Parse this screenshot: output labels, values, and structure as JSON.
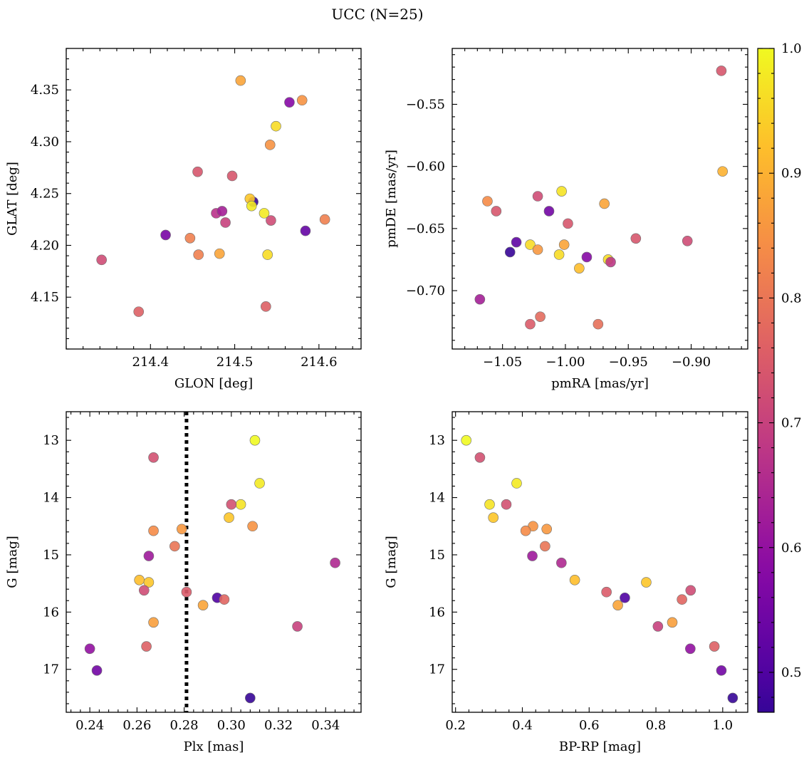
{
  "figure": {
    "title": "UCC (N=25)"
  },
  "colors": {
    "colormap": "plasma",
    "point_edge": "#6e6e6e",
    "vline": "#000000"
  },
  "chart_data": [
    {
      "type": "scatter",
      "panel": "top-left",
      "xlabel": "GLON [deg]",
      "ylabel": "GLAT [deg]",
      "xlim": [
        214.3,
        214.65
      ],
      "ylim": [
        4.1,
        4.39
      ],
      "xticks": [
        214.4,
        214.5,
        214.6
      ],
      "xtick_labels": [
        "214.4",
        "214.5",
        "214.6"
      ],
      "yticks": [
        4.15,
        4.2,
        4.25,
        4.3,
        4.35
      ],
      "ytick_labels": [
        "4.15",
        "4.20",
        "4.25",
        "4.30",
        "4.35"
      ],
      "points": [
        {
          "x": 214.507,
          "y": 4.359,
          "c": 0.88
        },
        {
          "x": 214.565,
          "y": 4.338,
          "c": 0.58
        },
        {
          "x": 214.58,
          "y": 4.34,
          "c": 0.85
        },
        {
          "x": 214.549,
          "y": 4.315,
          "c": 0.96
        },
        {
          "x": 214.542,
          "y": 4.297,
          "c": 0.85
        },
        {
          "x": 214.456,
          "y": 4.271,
          "c": 0.74
        },
        {
          "x": 214.497,
          "y": 4.267,
          "c": 0.74
        },
        {
          "x": 214.522,
          "y": 4.242,
          "c": 0.47
        },
        {
          "x": 214.518,
          "y": 4.245,
          "c": 0.93
        },
        {
          "x": 214.52,
          "y": 4.238,
          "c": 0.98
        },
        {
          "x": 214.535,
          "y": 4.231,
          "c": 0.98
        },
        {
          "x": 214.478,
          "y": 4.231,
          "c": 0.67
        },
        {
          "x": 214.485,
          "y": 4.233,
          "c": 0.63
        },
        {
          "x": 214.489,
          "y": 4.222,
          "c": 0.7
        },
        {
          "x": 214.543,
          "y": 4.224,
          "c": 0.72
        },
        {
          "x": 214.607,
          "y": 4.225,
          "c": 0.82
        },
        {
          "x": 214.584,
          "y": 4.214,
          "c": 0.53
        },
        {
          "x": 214.418,
          "y": 4.21,
          "c": 0.56
        },
        {
          "x": 214.447,
          "y": 4.207,
          "c": 0.82
        },
        {
          "x": 214.457,
          "y": 4.191,
          "c": 0.82
        },
        {
          "x": 214.482,
          "y": 4.192,
          "c": 0.88
        },
        {
          "x": 214.539,
          "y": 4.191,
          "c": 0.96
        },
        {
          "x": 214.342,
          "y": 4.186,
          "c": 0.72
        },
        {
          "x": 214.386,
          "y": 4.136,
          "c": 0.76
        },
        {
          "x": 214.537,
          "y": 4.141,
          "c": 0.76
        }
      ]
    },
    {
      "type": "scatter",
      "panel": "top-right",
      "xlabel": "pmRA [mas/yr]",
      "ylabel": "pmDE [mas/yr]",
      "xlim": [
        -1.09,
        -0.855
      ],
      "ylim": [
        -0.747,
        -0.505
      ],
      "xticks": [
        -1.05,
        -1.0,
        -0.95,
        -0.9
      ],
      "xtick_labels": [
        "−1.05",
        "−1.00",
        "−0.95",
        "−0.90"
      ],
      "yticks": [
        -0.7,
        -0.65,
        -0.6,
        -0.55
      ],
      "ytick_labels": [
        "−0.70",
        "−0.65",
        "−0.60",
        "−0.55"
      ],
      "points": [
        {
          "x": -0.876,
          "y": -0.523,
          "c": 0.74
        },
        {
          "x": -0.875,
          "y": -0.604,
          "c": 0.9
        },
        {
          "x": -1.062,
          "y": -0.628,
          "c": 0.84
        },
        {
          "x": -1.055,
          "y": -0.636,
          "c": 0.74
        },
        {
          "x": -1.022,
          "y": -0.624,
          "c": 0.72
        },
        {
          "x": -1.013,
          "y": -0.636,
          "c": 0.55
        },
        {
          "x": -1.003,
          "y": -0.62,
          "c": 0.97
        },
        {
          "x": -0.969,
          "y": -0.63,
          "c": 0.88
        },
        {
          "x": -0.998,
          "y": -0.646,
          "c": 0.74
        },
        {
          "x": -0.944,
          "y": -0.658,
          "c": 0.74
        },
        {
          "x": -0.903,
          "y": -0.66,
          "c": 0.72
        },
        {
          "x": -1.039,
          "y": -0.661,
          "c": 0.52
        },
        {
          "x": -1.044,
          "y": -0.669,
          "c": 0.47
        },
        {
          "x": -1.028,
          "y": -0.663,
          "c": 0.96
        },
        {
          "x": -1.022,
          "y": -0.667,
          "c": 0.86
        },
        {
          "x": -1.001,
          "y": -0.663,
          "c": 0.88
        },
        {
          "x": -1.005,
          "y": -0.671,
          "c": 0.96
        },
        {
          "x": -0.983,
          "y": -0.673,
          "c": 0.58
        },
        {
          "x": -0.966,
          "y": -0.675,
          "c": 0.96
        },
        {
          "x": -0.964,
          "y": -0.677,
          "c": 0.68
        },
        {
          "x": -0.989,
          "y": -0.682,
          "c": 0.92
        },
        {
          "x": -1.068,
          "y": -0.707,
          "c": 0.63
        },
        {
          "x": -1.02,
          "y": -0.721,
          "c": 0.78
        },
        {
          "x": -1.028,
          "y": -0.727,
          "c": 0.75
        },
        {
          "x": -0.974,
          "y": -0.727,
          "c": 0.79
        }
      ]
    },
    {
      "type": "scatter",
      "panel": "bottom-left",
      "xlabel": "Plx [mas]",
      "ylabel": "G [mag]",
      "xlim": [
        0.23,
        0.355
      ],
      "ylim": [
        17.75,
        12.5
      ],
      "y_inverted": true,
      "xticks": [
        0.24,
        0.26,
        0.28,
        0.3,
        0.32,
        0.34
      ],
      "xtick_labels": [
        "0.24",
        "0.26",
        "0.28",
        "0.30",
        "0.32",
        "0.34"
      ],
      "yticks": [
        13,
        14,
        15,
        16,
        17
      ],
      "ytick_labels": [
        "13",
        "14",
        "15",
        "16",
        "17"
      ],
      "vline": {
        "x": 0.281,
        "style": "dotted"
      },
      "points": [
        {
          "x": 0.31,
          "y": 13.0,
          "c": 1.0
        },
        {
          "x": 0.267,
          "y": 13.3,
          "c": 0.73
        },
        {
          "x": 0.312,
          "y": 13.75,
          "c": 0.98
        },
        {
          "x": 0.304,
          "y": 14.12,
          "c": 0.97
        },
        {
          "x": 0.3,
          "y": 14.12,
          "c": 0.73
        },
        {
          "x": 0.299,
          "y": 14.35,
          "c": 0.93
        },
        {
          "x": 0.309,
          "y": 14.5,
          "c": 0.85
        },
        {
          "x": 0.267,
          "y": 14.58,
          "c": 0.84
        },
        {
          "x": 0.279,
          "y": 14.55,
          "c": 0.86
        },
        {
          "x": 0.276,
          "y": 14.85,
          "c": 0.8
        },
        {
          "x": 0.265,
          "y": 15.02,
          "c": 0.62
        },
        {
          "x": 0.344,
          "y": 15.14,
          "c": 0.65
        },
        {
          "x": 0.261,
          "y": 15.44,
          "c": 0.92
        },
        {
          "x": 0.265,
          "y": 15.48,
          "c": 0.93
        },
        {
          "x": 0.263,
          "y": 15.62,
          "c": 0.72
        },
        {
          "x": 0.281,
          "y": 15.65,
          "c": 0.75
        },
        {
          "x": 0.294,
          "y": 15.75,
          "c": 0.5
        },
        {
          "x": 0.297,
          "y": 15.78,
          "c": 0.77
        },
        {
          "x": 0.288,
          "y": 15.88,
          "c": 0.88
        },
        {
          "x": 0.267,
          "y": 16.18,
          "c": 0.87
        },
        {
          "x": 0.328,
          "y": 16.25,
          "c": 0.7
        },
        {
          "x": 0.264,
          "y": 16.6,
          "c": 0.76
        },
        {
          "x": 0.24,
          "y": 16.64,
          "c": 0.6
        },
        {
          "x": 0.243,
          "y": 17.02,
          "c": 0.55
        },
        {
          "x": 0.308,
          "y": 17.5,
          "c": 0.47
        }
      ]
    },
    {
      "type": "scatter",
      "panel": "bottom-right",
      "xlabel": "BP-RP [mag]",
      "ylabel": "G [mag]",
      "xlim": [
        0.19,
        1.075
      ],
      "ylim": [
        17.75,
        12.5
      ],
      "y_inverted": true,
      "xticks": [
        0.2,
        0.4,
        0.6,
        0.8,
        1.0
      ],
      "xtick_labels": [
        "0.2",
        "0.4",
        "0.6",
        "0.8",
        "1.0"
      ],
      "yticks": [
        13,
        14,
        15,
        16,
        17
      ],
      "ytick_labels": [
        "13",
        "14",
        "15",
        "16",
        "17"
      ],
      "points": [
        {
          "x": 0.232,
          "y": 13.0,
          "c": 1.0
        },
        {
          "x": 0.273,
          "y": 13.3,
          "c": 0.73
        },
        {
          "x": 0.383,
          "y": 13.75,
          "c": 0.98
        },
        {
          "x": 0.302,
          "y": 14.12,
          "c": 0.97
        },
        {
          "x": 0.352,
          "y": 14.12,
          "c": 0.73
        },
        {
          "x": 0.313,
          "y": 14.35,
          "c": 0.93
        },
        {
          "x": 0.432,
          "y": 14.5,
          "c": 0.85
        },
        {
          "x": 0.41,
          "y": 14.58,
          "c": 0.84
        },
        {
          "x": 0.473,
          "y": 14.55,
          "c": 0.86
        },
        {
          "x": 0.468,
          "y": 14.85,
          "c": 0.8
        },
        {
          "x": 0.43,
          "y": 15.02,
          "c": 0.62
        },
        {
          "x": 0.517,
          "y": 15.14,
          "c": 0.65
        },
        {
          "x": 0.557,
          "y": 15.44,
          "c": 0.92
        },
        {
          "x": 0.771,
          "y": 15.48,
          "c": 0.93
        },
        {
          "x": 0.904,
          "y": 15.62,
          "c": 0.72
        },
        {
          "x": 0.652,
          "y": 15.65,
          "c": 0.75
        },
        {
          "x": 0.707,
          "y": 15.75,
          "c": 0.5
        },
        {
          "x": 0.878,
          "y": 15.78,
          "c": 0.77
        },
        {
          "x": 0.686,
          "y": 15.88,
          "c": 0.88
        },
        {
          "x": 0.849,
          "y": 16.18,
          "c": 0.87
        },
        {
          "x": 0.806,
          "y": 16.25,
          "c": 0.7
        },
        {
          "x": 0.975,
          "y": 16.6,
          "c": 0.76
        },
        {
          "x": 0.903,
          "y": 16.64,
          "c": 0.6
        },
        {
          "x": 0.996,
          "y": 17.02,
          "c": 0.55
        },
        {
          "x": 1.03,
          "y": 17.5,
          "c": 0.47
        }
      ]
    }
  ],
  "colorbar": {
    "cmap": "plasma",
    "min": 0.468,
    "max": 1.0,
    "ticks": [
      0.5,
      0.6,
      0.7,
      0.8,
      0.9,
      1.0
    ],
    "tick_labels": [
      "0.5",
      "0.6",
      "0.7",
      "0.8",
      "0.9",
      "1.0"
    ]
  }
}
